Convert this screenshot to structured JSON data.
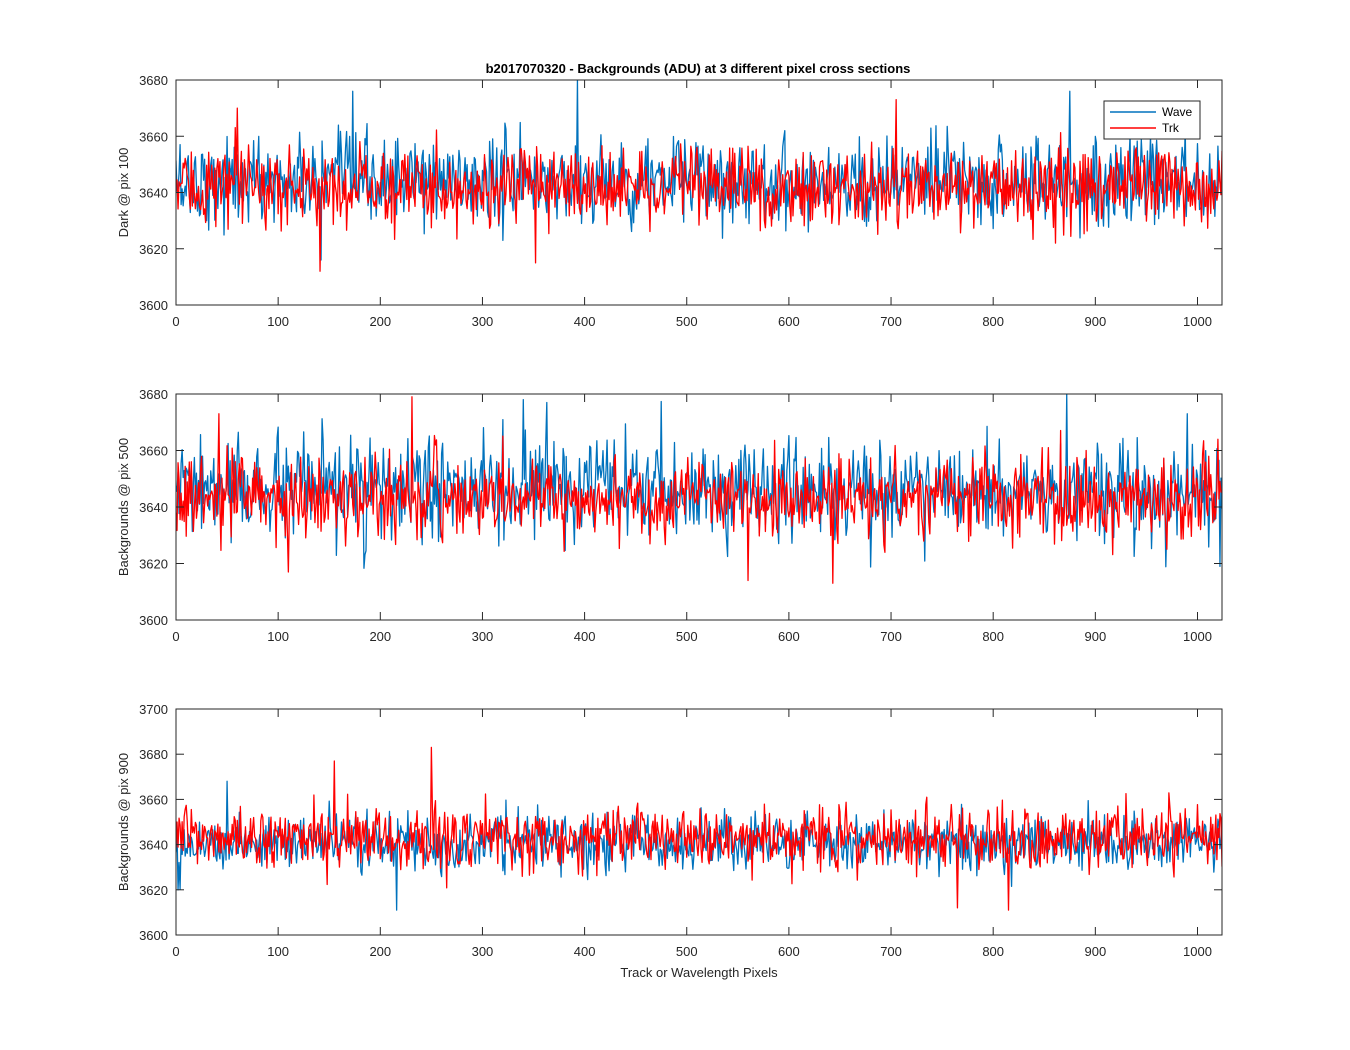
{
  "figure": {
    "title": "b2017070320 - Backgrounds (ADU) at 3 different pixel cross sections",
    "xlabel": "Track or Wavelength Pixels"
  },
  "legend": {
    "placement": "top-right",
    "entries": [
      "Wave",
      "Trk"
    ]
  },
  "colors": {
    "Wave": "#0072BD",
    "Trk": "#FF0000"
  },
  "chart_data": [
    {
      "type": "line",
      "title": "b2017070320 - Backgrounds (ADU) at 3 different pixel cross sections",
      "ylabel": "Dark @ pix 100",
      "xlabel": "",
      "xlim": [
        0,
        1024
      ],
      "ylim": [
        3600,
        3680
      ],
      "xticks": [
        0,
        100,
        200,
        300,
        400,
        500,
        600,
        700,
        800,
        900,
        1000
      ],
      "yticks": [
        3600,
        3620,
        3640,
        3660,
        3680
      ],
      "grid": false,
      "legend": "top-right",
      "series": [
        {
          "name": "Wave",
          "mean": 3644,
          "spread": 9,
          "min": 3616,
          "max": 3680,
          "peaks": [
            [
              173,
              3676
            ],
            [
              393,
              3680
            ],
            [
              875,
              3676
            ],
            [
              142,
              3616
            ]
          ]
        },
        {
          "name": "Trk",
          "mean": 3642,
          "spread": 8,
          "min": 3612,
          "max": 3673,
          "peaks": [
            [
              141,
              3612
            ],
            [
              705,
              3673
            ],
            [
              60,
              3670
            ],
            [
              352,
              3615
            ]
          ]
        }
      ]
    },
    {
      "type": "line",
      "title": "",
      "ylabel": "Backgrounds @ pix 500",
      "xlabel": "",
      "xlim": [
        0,
        1024
      ],
      "ylim": [
        3600,
        3680
      ],
      "xticks": [
        0,
        100,
        200,
        300,
        400,
        500,
        600,
        700,
        800,
        900,
        1000
      ],
      "yticks": [
        3600,
        3620,
        3640,
        3660,
        3680
      ],
      "grid": false,
      "legend": "",
      "series": [
        {
          "name": "Wave",
          "mean": 3646,
          "spread": 10,
          "min": 3618,
          "max": 3680,
          "peaks": [
            [
              340,
              3678
            ],
            [
              363,
              3677
            ],
            [
              872,
              3680
            ],
            [
              990,
              3673
            ],
            [
              1022,
              3619
            ]
          ]
        },
        {
          "name": "Trk",
          "mean": 3643,
          "spread": 8,
          "min": 3613,
          "max": 3679,
          "peaks": [
            [
              231,
              3679
            ],
            [
              42,
              3673
            ],
            [
              643,
              3613
            ],
            [
              560,
              3614
            ],
            [
              110,
              3617
            ]
          ]
        }
      ]
    },
    {
      "type": "line",
      "title": "",
      "ylabel": "Backgrounds @ pix 900",
      "xlabel": "Track or Wavelength Pixels",
      "xlim": [
        0,
        1024
      ],
      "ylim": [
        3600,
        3700
      ],
      "xticks": [
        0,
        100,
        200,
        300,
        400,
        500,
        600,
        700,
        800,
        900,
        1000
      ],
      "yticks": [
        3600,
        3620,
        3640,
        3660,
        3680,
        3700
      ],
      "grid": false,
      "legend": "",
      "series": [
        {
          "name": "Wave",
          "mean": 3641,
          "spread": 7,
          "min": 3611,
          "max": 3668,
          "peaks": [
            [
              216,
              3611
            ],
            [
              2,
              3620
            ],
            [
              50,
              3668
            ]
          ]
        },
        {
          "name": "Trk",
          "mean": 3643,
          "spread": 8,
          "min": 3611,
          "max": 3683,
          "peaks": [
            [
              250,
              3683
            ],
            [
              155,
              3677
            ],
            [
              815,
              3611
            ],
            [
              765,
              3612
            ]
          ]
        }
      ]
    }
  ]
}
